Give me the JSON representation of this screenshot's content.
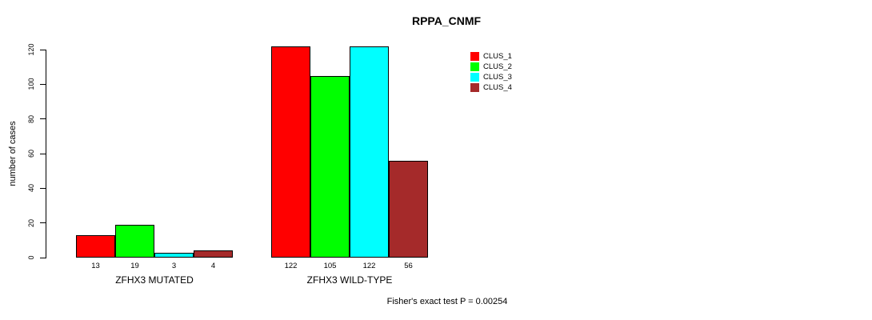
{
  "title": "RPPA_CNMF",
  "footer": "Fisher's exact test P = 0.00254",
  "chart_data": {
    "type": "bar",
    "title": "RPPA_CNMF",
    "xlabel": "",
    "ylabel": "number of cases",
    "ylim": [
      0,
      120
    ],
    "yticks": [
      0,
      20,
      40,
      60,
      80,
      100,
      120
    ],
    "grid": false,
    "legend_position": "top-right",
    "categories": [
      "ZFHX3 MUTATED",
      "ZFHX3 WILD-TYPE"
    ],
    "series": [
      {
        "name": "CLUS_1",
        "color": "#ff0000",
        "values": [
          13,
          122
        ]
      },
      {
        "name": "CLUS_2",
        "color": "#00ff00",
        "values": [
          19,
          105
        ]
      },
      {
        "name": "CLUS_3",
        "color": "#00ffff",
        "values": [
          3,
          122
        ]
      },
      {
        "name": "CLUS_4",
        "color": "#a52a2a",
        "values": [
          4,
          56
        ]
      }
    ],
    "bar_value_labels": [
      [
        13,
        19,
        3,
        4
      ],
      [
        122,
        105,
        122,
        56
      ]
    ],
    "annotation": "Fisher's exact test P = 0.00254"
  }
}
